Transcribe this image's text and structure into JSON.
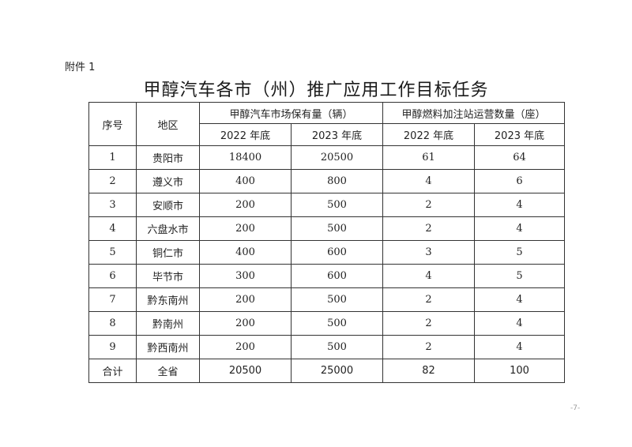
{
  "attachment_label": "附件 1",
  "title": "甲醇汽车各市（州）推广应用工作目标任务",
  "table": {
    "headers": {
      "index": "序号",
      "region": "地区",
      "vehicles_group": "甲醇汽车市场保有量（辆）",
      "stations_group": "甲醇燃料加注站运营数量（座）",
      "sub": [
        "2022 年底",
        "2023 年底",
        "2022 年底",
        "2023 年底"
      ]
    },
    "rows": [
      [
        "1",
        "贵阳市",
        "18400",
        "20500",
        "61",
        "64"
      ],
      [
        "2",
        "遵义市",
        "400",
        "800",
        "4",
        "6"
      ],
      [
        "3",
        "安顺市",
        "200",
        "500",
        "2",
        "4"
      ],
      [
        "4",
        "六盘水市",
        "200",
        "500",
        "2",
        "4"
      ],
      [
        "5",
        "铜仁市",
        "400",
        "600",
        "3",
        "5"
      ],
      [
        "6",
        "毕节市",
        "300",
        "600",
        "4",
        "5"
      ],
      [
        "7",
        "黔东南州",
        "200",
        "500",
        "2",
        "4"
      ],
      [
        "8",
        "黔南州",
        "200",
        "500",
        "2",
        "4"
      ],
      [
        "9",
        "黔西南州",
        "200",
        "500",
        "2",
        "4"
      ]
    ],
    "total": [
      "合计",
      "全省",
      "20500",
      "25000",
      "82",
      "100"
    ]
  },
  "page_number": "-7-"
}
